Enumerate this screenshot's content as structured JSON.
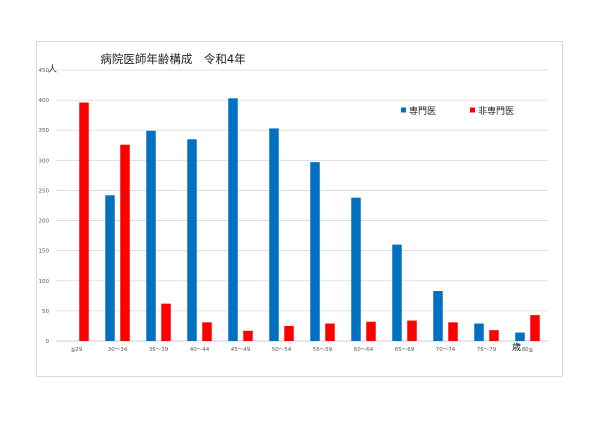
{
  "chart_data": {
    "type": "bar",
    "title": "病院医師年齢構成　令和4年",
    "ylabel": "人",
    "xlabel": "歳",
    "ylim": [
      0,
      450
    ],
    "yticks": [
      0,
      50,
      100,
      150,
      200,
      250,
      300,
      350,
      400,
      450
    ],
    "grid": true,
    "legend_position": "top-right",
    "categories": [
      "≦29",
      "30～34",
      "35～39",
      "40～44",
      "45～49",
      "50～54",
      "55～59",
      "60～64",
      "65～69",
      "70～74",
      "75～79",
      "80≦"
    ],
    "series": [
      {
        "name": "専門医",
        "color": "#0070c0",
        "values": [
          0,
          242,
          349,
          335,
          403,
          353,
          297,
          238,
          160,
          83,
          29,
          14
        ]
      },
      {
        "name": "非専門医",
        "color": "#ff0000",
        "values": [
          396,
          326,
          62,
          31,
          17,
          25,
          29,
          32,
          34,
          31,
          18,
          43
        ]
      }
    ]
  }
}
